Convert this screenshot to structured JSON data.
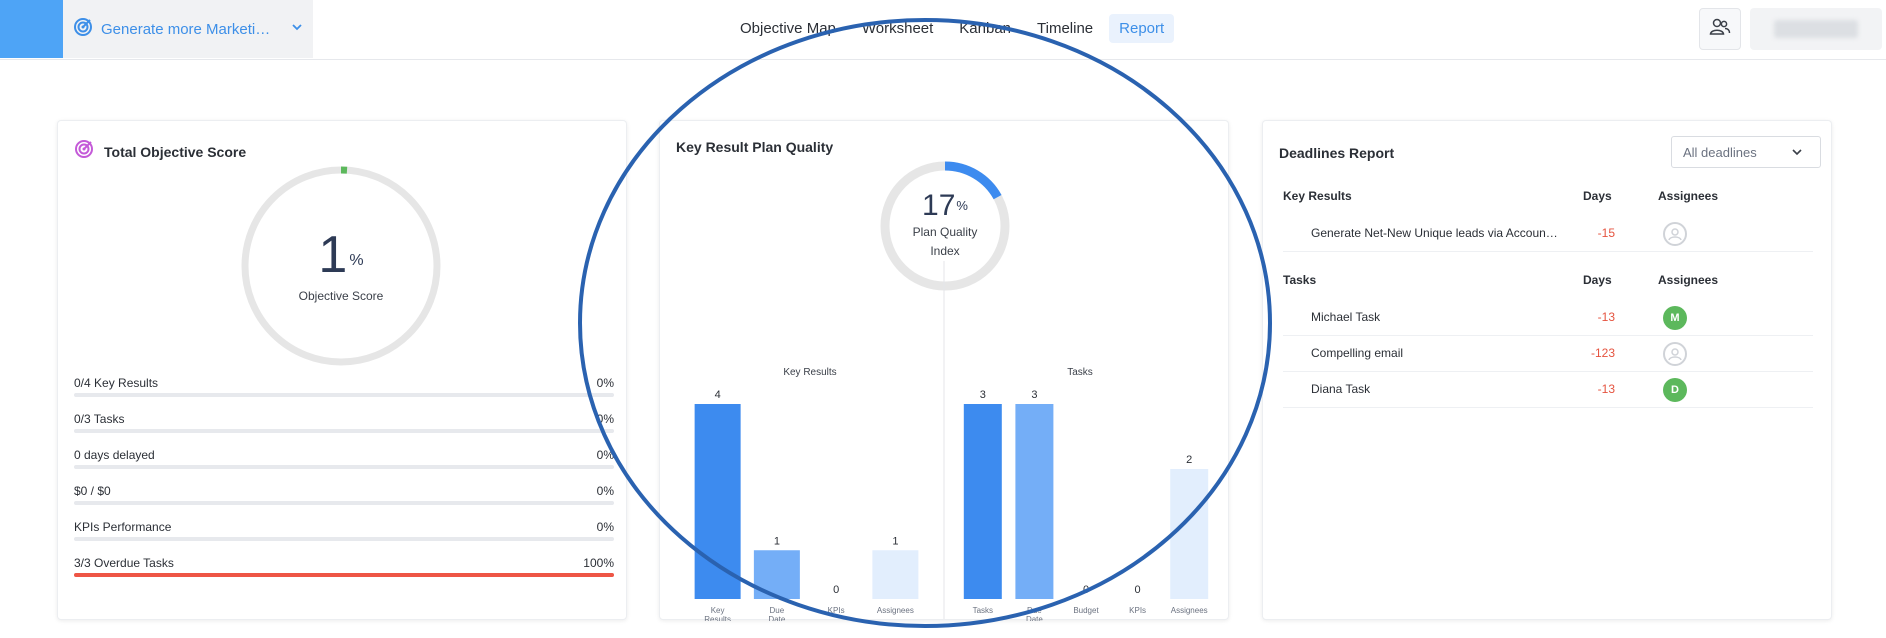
{
  "header": {
    "objective_title": "Generate more Marketing …",
    "tabs": [
      {
        "label": "Objective Map"
      },
      {
        "label": "Worksheet"
      },
      {
        "label": "Kanban"
      },
      {
        "label": "Timeline"
      },
      {
        "label": "Report",
        "active": true
      }
    ],
    "accent_color": "#3d8fe8",
    "corner_color": "#4ea4f6"
  },
  "score_card": {
    "title": "Total Objective Score",
    "score_value": "1",
    "score_unit": "%",
    "score_fraction": 0.01,
    "score_caption": "Objective Score",
    "metrics": [
      {
        "label": "0/4 Key Results",
        "value": "0%",
        "progress": 0
      },
      {
        "label": "0/3 Tasks",
        "value": "0%",
        "progress": 0
      },
      {
        "label": "0 days delayed",
        "value": "0%",
        "progress": 0
      },
      {
        "label": "$0 / $0",
        "value": "0%",
        "progress": 0
      },
      {
        "label": "KPIs Performance",
        "value": "0%",
        "progress": 0
      },
      {
        "label": "3/3 Overdue Tasks",
        "value": "100%",
        "progress": 1
      }
    ]
  },
  "quality_card": {
    "title": "Key Result Plan Quality",
    "index_value": "17",
    "index_unit": "%",
    "index_fraction": 0.17,
    "index_caption": "Plan Quality Index"
  },
  "chart_data": [
    {
      "type": "bar",
      "title": "Key Results",
      "categories": [
        "Key Results",
        "Due Date",
        "KPIs",
        "Assignees"
      ],
      "values": [
        4,
        1,
        0,
        1
      ],
      "colors": [
        "#3d8bef",
        "#74aef7",
        "#bcd8fb",
        "#e2eefd"
      ],
      "ylim": [
        0,
        4
      ]
    },
    {
      "type": "bar",
      "title": "Tasks",
      "categories": [
        "Tasks",
        "Due Date",
        "Budget",
        "KPIs",
        "Assignees"
      ],
      "values": [
        3,
        3,
        0,
        0,
        2
      ],
      "colors": [
        "#3d8bef",
        "#74aef7",
        "#a9ccf9",
        "#c9e0fb",
        "#e2eefd"
      ],
      "ylim": [
        0,
        3
      ]
    }
  ],
  "deadlines_card": {
    "title": "Deadlines Report",
    "filter_value": "All deadlines",
    "key_results_header": {
      "name": "Key Results",
      "days": "Days",
      "assignees": "Assignees"
    },
    "key_results": [
      {
        "name": "Generate Net-New Unique leads via Accoun…",
        "days": "-15",
        "avatar": "",
        "avatar_type": "empty"
      }
    ],
    "tasks_header": {
      "name": "Tasks",
      "days": "Days",
      "assignees": "Assignees"
    },
    "tasks": [
      {
        "name": "Michael Task",
        "days": "-13",
        "avatar": "M",
        "avatar_type": "green"
      },
      {
        "name": "Compelling email",
        "days": "-123",
        "avatar": "",
        "avatar_type": "empty"
      },
      {
        "name": "Diana Task",
        "days": "-13",
        "avatar": "D",
        "avatar_type": "green"
      }
    ],
    "negative_color": "#e5533f"
  },
  "annotation_color": "#2a62b0"
}
